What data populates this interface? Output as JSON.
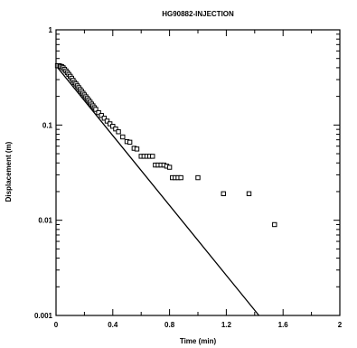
{
  "chart_data": {
    "type": "scatter",
    "title": "HG90882-INJECTION",
    "xlabel": "Time (min)",
    "ylabel": "Displacement (m)",
    "xlim": [
      0,
      2
    ],
    "ylim": [
      0.001,
      1
    ],
    "yscale": "log",
    "grid": false,
    "legend": "none",
    "x_ticks": [
      0,
      0.4,
      0.8,
      1.2,
      1.6,
      2
    ],
    "x_tick_labels": [
      "0",
      "0.4",
      "0.8",
      "1.2",
      "1.6",
      "2"
    ],
    "y_ticks": [
      1,
      0.1,
      0.01,
      0.001
    ],
    "y_tick_labels": [
      "1",
      "0.1",
      "0.01",
      "0.001"
    ],
    "series": [
      {
        "kind": "markers",
        "marker": "open-square",
        "color": "#000000",
        "points": [
          [
            0.01,
            0.42
          ],
          [
            0.02,
            0.42
          ],
          [
            0.03,
            0.415
          ],
          [
            0.04,
            0.41
          ],
          [
            0.05,
            0.4
          ],
          [
            0.06,
            0.385
          ],
          [
            0.07,
            0.37
          ],
          [
            0.08,
            0.355
          ],
          [
            0.09,
            0.34
          ],
          [
            0.1,
            0.325
          ],
          [
            0.11,
            0.31
          ],
          [
            0.12,
            0.295
          ],
          [
            0.13,
            0.28
          ],
          [
            0.14,
            0.27
          ],
          [
            0.15,
            0.258
          ],
          [
            0.16,
            0.247
          ],
          [
            0.17,
            0.236
          ],
          [
            0.18,
            0.226
          ],
          [
            0.19,
            0.216
          ],
          [
            0.2,
            0.207
          ],
          [
            0.21,
            0.198
          ],
          [
            0.22,
            0.19
          ],
          [
            0.23,
            0.182
          ],
          [
            0.24,
            0.174
          ],
          [
            0.25,
            0.166
          ],
          [
            0.26,
            0.159
          ],
          [
            0.27,
            0.152
          ],
          [
            0.28,
            0.146
          ],
          [
            0.3,
            0.135
          ],
          [
            0.32,
            0.126
          ],
          [
            0.34,
            0.118
          ],
          [
            0.36,
            0.11
          ],
          [
            0.38,
            0.103
          ],
          [
            0.4,
            0.097
          ],
          [
            0.42,
            0.091
          ],
          [
            0.44,
            0.085
          ],
          [
            0.47,
            0.075
          ],
          [
            0.5,
            0.067
          ],
          [
            0.52,
            0.066
          ],
          [
            0.55,
            0.057
          ],
          [
            0.57,
            0.056
          ],
          [
            0.6,
            0.047
          ],
          [
            0.62,
            0.047
          ],
          [
            0.64,
            0.047
          ],
          [
            0.66,
            0.047
          ],
          [
            0.68,
            0.047
          ],
          [
            0.7,
            0.038
          ],
          [
            0.72,
            0.038
          ],
          [
            0.74,
            0.038
          ],
          [
            0.76,
            0.038
          ],
          [
            0.78,
            0.037
          ],
          [
            0.8,
            0.036
          ],
          [
            0.82,
            0.028
          ],
          [
            0.84,
            0.028
          ],
          [
            0.86,
            0.028
          ],
          [
            0.88,
            0.028
          ],
          [
            1.0,
            0.028
          ],
          [
            1.18,
            0.019
          ],
          [
            1.36,
            0.019
          ],
          [
            1.54,
            0.009
          ]
        ]
      },
      {
        "kind": "line",
        "color": "#000000",
        "points": [
          [
            0.0,
            0.42
          ],
          [
            1.43,
            0.001
          ]
        ]
      }
    ]
  }
}
